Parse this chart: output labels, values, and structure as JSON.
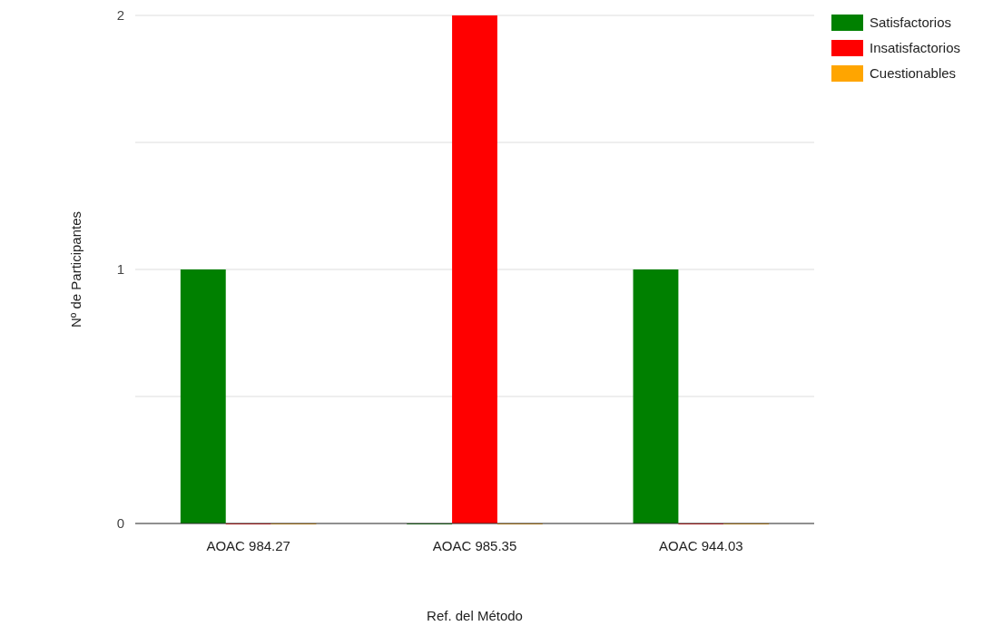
{
  "chart_data": {
    "type": "bar",
    "xlabel": "Ref. del Método",
    "ylabel": "Nº de Participantes",
    "categories": [
      "AOAC 984.27",
      "AOAC 985.35",
      "AOAC 944.03"
    ],
    "series": [
      {
        "name": "Satisfactorios",
        "color": "#008000",
        "values": [
          1,
          0,
          1
        ]
      },
      {
        "name": "Insatisfactorios",
        "color": "#ff0000",
        "values": [
          0,
          2,
          0
        ]
      },
      {
        "name": "Cuestionables",
        "color": "#ffa500",
        "values": [
          0,
          0,
          0
        ]
      }
    ],
    "ylim": [
      0,
      2
    ],
    "yticks": [
      0,
      {
        "value": 0.5,
        "label": null
      },
      1,
      {
        "value": 1.5,
        "label": null
      },
      2
    ],
    "grid": "y",
    "legend": "top right"
  }
}
